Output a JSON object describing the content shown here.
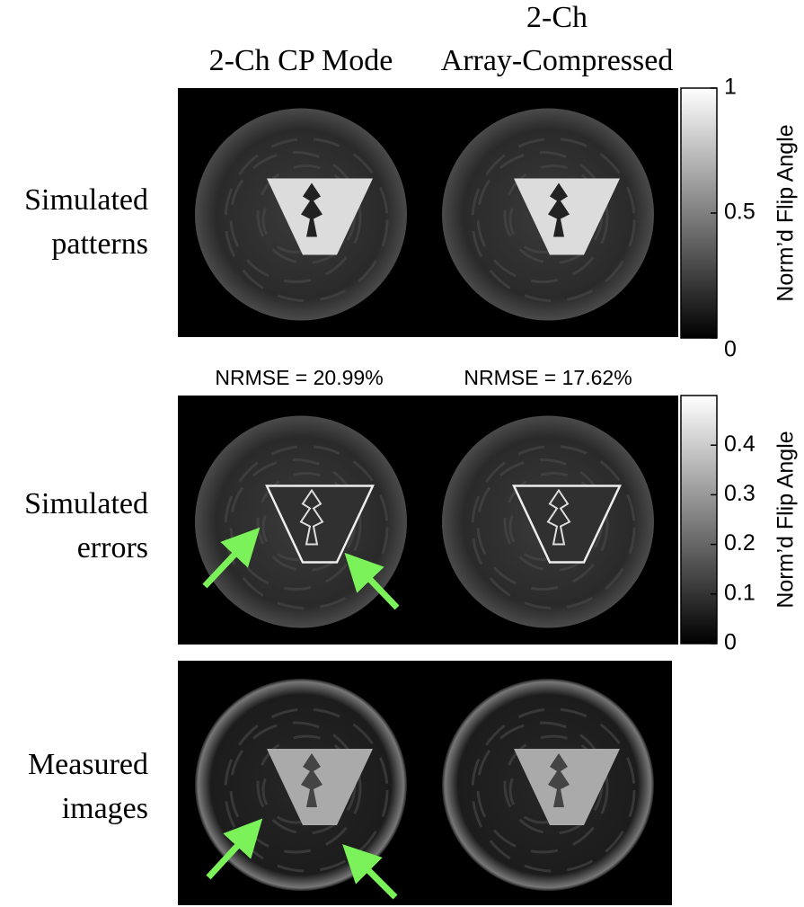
{
  "columns": [
    [
      "2-Ch CP Mode"
    ],
    [
      "2-Ch",
      "Array-Compressed"
    ]
  ],
  "rows": [
    [
      "Simulated",
      "patterns"
    ],
    [
      "Simulated",
      "errors"
    ],
    [
      "Measured",
      "images"
    ]
  ],
  "nrmse": [
    "NRMSE = 20.99%",
    "NRMSE = 17.62%"
  ],
  "colorbars": [
    {
      "label": "Norm’d Flip Angle",
      "lim": [
        0,
        1
      ],
      "ticks": [
        0,
        0.5,
        1
      ]
    },
    {
      "label": "Norm’d Flip Angle",
      "lim": [
        0,
        0.5
      ],
      "ticks": [
        0,
        0.1,
        0.2,
        0.3,
        0.4
      ]
    }
  ]
}
